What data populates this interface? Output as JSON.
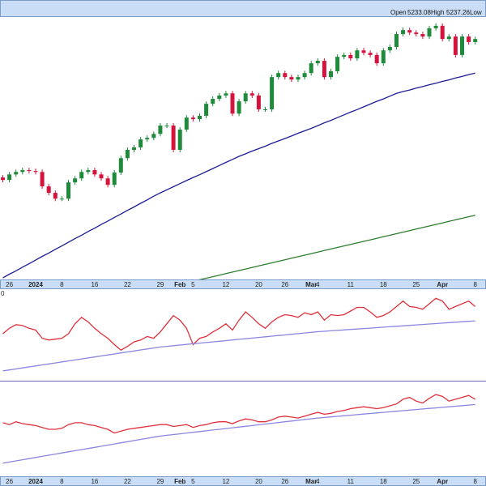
{
  "header": {
    "open_label": "Open",
    "open": 5233.08,
    "high_label": "High",
    "high": 5237.26,
    "low_label": "Low"
  },
  "chart_data": [
    {
      "type": "candlestick",
      "categories": [
        null,
        "26",
        null,
        null,
        null,
        "2024",
        null,
        null,
        null,
        "8",
        null,
        null,
        null,
        null,
        "16",
        null,
        null,
        null,
        null,
        "22",
        null,
        null,
        null,
        null,
        "29",
        null,
        null,
        "Feb",
        null,
        "5",
        null,
        null,
        null,
        null,
        "12",
        null,
        null,
        null,
        null,
        "20",
        null,
        null,
        null,
        "26",
        null,
        null,
        null,
        "Mar",
        "4",
        null,
        null,
        null,
        null,
        "11",
        null,
        null,
        null,
        null,
        "18",
        null,
        null,
        null,
        null,
        "25",
        null,
        null,
        null,
        "Apr",
        null,
        null,
        null,
        null,
        "8"
      ],
      "open": [
        4760,
        4752,
        4770,
        4778,
        4784,
        4781,
        4778,
        4731,
        4710,
        4691,
        4691,
        4744,
        4757,
        4778,
        4784,
        4770,
        4757,
        4736,
        4776,
        4823,
        4850,
        4858,
        4884,
        4889,
        4902,
        4929,
        4929,
        4850,
        4916,
        4955,
        4950,
        4961,
        5000,
        5016,
        5027,
        5034,
        4968,
        5008,
        5034,
        5027,
        4982,
        4982,
        5087,
        5100,
        5087,
        5079,
        5087,
        5100,
        5132,
        5140,
        5087,
        5106,
        5153,
        5159,
        5148,
        5174,
        5166,
        5159,
        5132,
        5174,
        5185,
        5227,
        5240,
        5232,
        5227,
        5219,
        5246,
        5254,
        5211,
        5219,
        5159,
        5219,
        5201
      ],
      "high": [
        4768,
        4778,
        4786,
        4792,
        4792,
        4789,
        4786,
        4739,
        4718,
        4699,
        4752,
        4765,
        4786,
        4792,
        4792,
        4778,
        4765,
        4784,
        4831,
        4858,
        4866,
        4892,
        4897,
        4910,
        4937,
        4937,
        4937,
        4924,
        4963,
        4963,
        4969,
        5008,
        5024,
        5035,
        5042,
        5042,
        5016,
        5042,
        5042,
        5035,
        4990,
        5095,
        5108,
        5108,
        5095,
        5095,
        5108,
        5140,
        5148,
        5148,
        5114,
        5161,
        5167,
        5167,
        5182,
        5182,
        5174,
        5167,
        5182,
        5193,
        5235,
        5248,
        5248,
        5240,
        5235,
        5254,
        5262,
        5262,
        5227,
        5227,
        5227,
        5227,
        5219
      ],
      "low": [
        4744,
        4744,
        4762,
        4770,
        4773,
        4770,
        4723,
        4702,
        4683,
        4683,
        4683,
        4736,
        4749,
        4770,
        4762,
        4749,
        4728,
        4728,
        4768,
        4815,
        4842,
        4850,
        4876,
        4881,
        4894,
        4921,
        4842,
        4842,
        4908,
        4942,
        4942,
        4953,
        4992,
        5008,
        5019,
        4960,
        4960,
        5000,
        5019,
        4974,
        4974,
        4974,
        5079,
        5079,
        5071,
        5071,
        5079,
        5092,
        5124,
        5079,
        5079,
        5098,
        5145,
        5140,
        5140,
        5158,
        5151,
        5124,
        5124,
        5166,
        5177,
        5219,
        5224,
        5219,
        5211,
        5211,
        5238,
        5203,
        5203,
        5151,
        5151,
        5193,
        5193
      ],
      "close": [
        4752,
        4770,
        4778,
        4784,
        4781,
        4778,
        4731,
        4710,
        4691,
        4691,
        4744,
        4757,
        4778,
        4784,
        4770,
        4757,
        4736,
        4776,
        4823,
        4850,
        4858,
        4884,
        4889,
        4902,
        4929,
        4929,
        4850,
        4916,
        4955,
        4950,
        4961,
        5000,
        5016,
        5027,
        5034,
        4968,
        5008,
        5034,
        5027,
        4982,
        4982,
        5087,
        5100,
        5087,
        5079,
        5087,
        5100,
        5132,
        5140,
        5087,
        5106,
        5153,
        5159,
        5148,
        5174,
        5166,
        5159,
        5132,
        5174,
        5185,
        5227,
        5240,
        5232,
        5227,
        5219,
        5246,
        5254,
        5211,
        5219,
        5159,
        5219,
        5201,
        5211
      ],
      "up_color": "#1e8a3a",
      "down_color": "#d4143c",
      "ylim": [
        4420,
        5280
      ],
      "series": [
        {
          "color": "#1c1c96",
          "values": [
            4433,
            4445,
            4456,
            4468,
            4479,
            4491,
            4503,
            4514,
            4526,
            4537,
            4549,
            4561,
            4572,
            4584,
            4595,
            4607,
            4618,
            4630,
            4641,
            4653,
            4664,
            4676,
            4687,
            4699,
            4710,
            4720,
            4730,
            4740,
            4750,
            4760,
            4769,
            4779,
            4789,
            4799,
            4809,
            4819,
            4829,
            4837,
            4846,
            4854,
            4862,
            4871,
            4879,
            4887,
            4895,
            4904,
            4912,
            4920,
            4929,
            4938,
            4946,
            4955,
            4964,
            4973,
            4981,
            4990,
            4999,
            5008,
            5016,
            5025,
            5034,
            5040,
            5045,
            5051,
            5056,
            5062,
            5067,
            5073,
            5078,
            5084,
            5089,
            5095,
            5100
          ]
        },
        {
          "color": "#2e7d2e",
          "values": [
            null,
            null,
            null,
            null,
            null,
            null,
            null,
            null,
            null,
            null,
            null,
            null,
            null,
            null,
            null,
            null,
            null,
            null,
            null,
            null,
            null,
            null,
            null,
            null,
            null,
            null,
            null,
            null,
            null,
            4422,
            4427,
            4432,
            4437,
            4442,
            4447,
            4452,
            4457,
            4462,
            4467,
            4472,
            4477,
            4482,
            4487,
            4492,
            4497,
            4502,
            4507,
            4512,
            4517,
            4522,
            4527,
            4532,
            4537,
            4542,
            4547,
            4552,
            4557,
            4562,
            4567,
            4572,
            4577,
            4582,
            4587,
            4592,
            4597,
            4602,
            4607,
            4612,
            4617,
            4622,
            4627,
            4632,
            4637
          ]
        }
      ]
    },
    {
      "type": "line",
      "ylim": [
        0,
        100
      ],
      "corner_label": "0",
      "series": [
        {
          "color": "#e0303c",
          "values": [
            50,
            56,
            60,
            59,
            56,
            54,
            45,
            43,
            44,
            45,
            50,
            61,
            68,
            63,
            56,
            50,
            45,
            38,
            32,
            36,
            41,
            43,
            47,
            45,
            52,
            61,
            70,
            65,
            56,
            38,
            45,
            47,
            52,
            56,
            61,
            54,
            65,
            74,
            68,
            61,
            56,
            63,
            68,
            71,
            70,
            68,
            73,
            71,
            74,
            65,
            71,
            70,
            71,
            75,
            79,
            79,
            74,
            68,
            70,
            74,
            80,
            86,
            80,
            79,
            77,
            83,
            89,
            86,
            77,
            80,
            83,
            86,
            80
          ]
        },
        {
          "color": "#8a86e0",
          "values": [
            9,
            10.1,
            11.2,
            12.3,
            13.4,
            14.5,
            15.6,
            16.7,
            17.8,
            18.9,
            20,
            21.1,
            22.2,
            23.3,
            24.4,
            25.5,
            26.6,
            27.7,
            28.8,
            29.9,
            31,
            32.1,
            33.2,
            34.3,
            35.4,
            36.1,
            36.8,
            37.5,
            38.2,
            38.9,
            39.6,
            40.3,
            41,
            41.7,
            42.4,
            43.1,
            43.8,
            44.5,
            45.2,
            45.9,
            46.6,
            47.3,
            48,
            48.7,
            49.4,
            50.1,
            50.8,
            51.5,
            52.2,
            52.7,
            53.2,
            53.7,
            54.2,
            54.7,
            55.2,
            55.7,
            56.2,
            56.7,
            57.2,
            57.7,
            58.2,
            58.7,
            59.2,
            59.7,
            60.2,
            60.7,
            61.2,
            61.7,
            62.2,
            62.7,
            63.2,
            63.7,
            64.2
          ]
        }
      ]
    },
    {
      "type": "line",
      "ylim": [
        0,
        100
      ],
      "series": [
        {
          "color": "#e0303c",
          "values": [
            57,
            55,
            58,
            56,
            55,
            54,
            52,
            50,
            50,
            51,
            55,
            57,
            57,
            55,
            54,
            52,
            50,
            46,
            48,
            50,
            51,
            52,
            53,
            54,
            55,
            55,
            53,
            54,
            55,
            52,
            54,
            55,
            57,
            58,
            58,
            56,
            59,
            61,
            60,
            58,
            58,
            60,
            63,
            64,
            63,
            62,
            64,
            66,
            68,
            66,
            67,
            69,
            70,
            72,
            73,
            74,
            73,
            72,
            73,
            75,
            77,
            82,
            84,
            80,
            78,
            83,
            87,
            85,
            80,
            82,
            84,
            86,
            82
          ]
        },
        {
          "color": "#8a86e0",
          "values": [
            14,
            15.2,
            16.4,
            17.6,
            18.8,
            20,
            21.2,
            22.4,
            23.6,
            24.8,
            26,
            27.2,
            28.4,
            29.6,
            30.8,
            32,
            33.2,
            34.4,
            35.6,
            36.8,
            38,
            39.2,
            40.4,
            41.6,
            42.8,
            43.6,
            44.4,
            45.2,
            46,
            46.8,
            47.6,
            48.4,
            49.2,
            50,
            50.8,
            51.6,
            52.4,
            53.2,
            54,
            54.8,
            55.6,
            56.4,
            57.2,
            58,
            58.8,
            59.6,
            60.4,
            61.2,
            62,
            62.6,
            63.2,
            63.8,
            64.4,
            65,
            65.6,
            66.2,
            66.8,
            67.4,
            68,
            68.6,
            69.2,
            69.8,
            70.4,
            71,
            71.6,
            72.2,
            72.8,
            73.4,
            74,
            74.6,
            75.2,
            75.8,
            76.4
          ]
        }
      ]
    }
  ]
}
